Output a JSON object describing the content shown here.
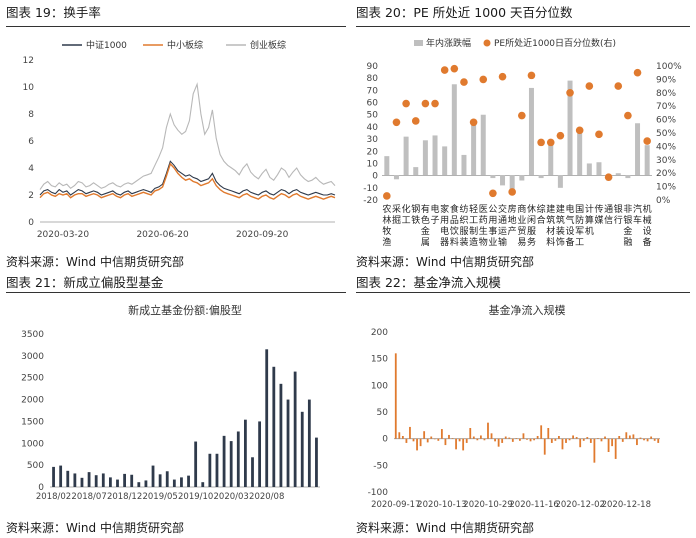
{
  "headers": {
    "fig19": "图表 19：换手率",
    "fig20": "图表 20：PE 所处近 1000 天百分位数",
    "fig21": "图表 21：新成立偏股型基金",
    "fig22": "图表 22：基金净流入规模"
  },
  "sources": {
    "s19": "资料来源：Wind  中信期货研究部",
    "s20": "资料来源：Wind  中信期货研究部",
    "s21": "资料来源：Wind  中信期货研究部",
    "s22": "资料来源：Wind  中信期货研究部"
  },
  "colors": {
    "dark": "#2f3a4b",
    "orange": "#e07a2e",
    "gray": "#b8b8b8",
    "bar_gray": "#bfbfbf"
  },
  "chart_data": [
    {
      "id": "turnover",
      "type": "line",
      "title": "",
      "legend": [
        "中证1000",
        "中小板综",
        "创业板综"
      ],
      "legend_position": "top",
      "ylim": [
        0,
        12
      ],
      "yticks": [
        0,
        2,
        4,
        6,
        8,
        10,
        12
      ],
      "xtick_labels": [
        "2020-03-20",
        "2020-06-20",
        "2020-09-20"
      ],
      "xtick_index": [
        6,
        32,
        58
      ],
      "series": [
        {
          "name": "中证1000",
          "values": [
            2.0,
            2.3,
            2.4,
            2.2,
            2.1,
            2.4,
            2.2,
            2.3,
            2.0,
            2.2,
            2.4,
            2.3,
            2.1,
            2.2,
            2.3,
            2.2,
            2.0,
            2.1,
            2.2,
            2.3,
            2.1,
            2.0,
            2.2,
            2.3,
            2.1,
            2.2,
            2.3,
            2.4,
            2.3,
            2.2,
            2.5,
            2.6,
            2.8,
            3.6,
            4.5,
            4.2,
            3.8,
            3.6,
            3.4,
            3.5,
            3.3,
            3.2,
            3.0,
            3.1,
            3.2,
            3.6,
            3.0,
            2.7,
            2.5,
            2.4,
            2.3,
            2.2,
            2.1,
            2.3,
            2.4,
            2.2,
            2.1,
            2.0,
            2.2,
            2.3,
            2.1,
            2.0,
            2.2,
            2.4,
            2.3,
            2.1,
            2.3,
            2.4,
            2.2,
            2.1,
            2.0,
            2.1,
            2.2,
            2.1,
            2.0,
            2.0,
            2.1,
            2.0
          ]
        },
        {
          "name": "中小板综",
          "values": [
            1.8,
            2.1,
            2.2,
            2.0,
            1.9,
            2.1,
            2.0,
            2.1,
            1.8,
            2.0,
            2.1,
            2.1,
            1.9,
            2.0,
            2.1,
            2.0,
            1.8,
            1.9,
            2.0,
            2.1,
            1.9,
            1.8,
            2.0,
            2.1,
            1.9,
            2.0,
            2.1,
            2.2,
            2.1,
            2.0,
            2.3,
            2.4,
            2.6,
            3.4,
            4.3,
            4.0,
            3.6,
            3.3,
            3.1,
            3.2,
            3.0,
            2.9,
            2.7,
            2.8,
            2.9,
            3.2,
            2.7,
            2.4,
            2.2,
            2.1,
            2.0,
            1.9,
            1.8,
            2.0,
            2.1,
            1.9,
            1.8,
            1.7,
            1.9,
            2.0,
            1.8,
            1.7,
            1.9,
            2.1,
            2.0,
            1.8,
            2.0,
            2.1,
            1.9,
            1.8,
            1.7,
            1.8,
            1.9,
            1.8,
            1.7,
            1.8,
            1.9,
            1.8
          ]
        },
        {
          "name": "创业板综",
          "values": [
            2.4,
            2.8,
            3.0,
            2.7,
            2.6,
            2.9,
            2.7,
            2.8,
            2.5,
            2.7,
            3.0,
            2.9,
            2.6,
            2.7,
            2.9,
            2.7,
            2.5,
            2.6,
            2.8,
            2.9,
            2.7,
            2.6,
            2.8,
            2.9,
            2.8,
            3.0,
            3.2,
            3.4,
            3.5,
            3.6,
            4.2,
            4.8,
            5.5,
            7.0,
            8.0,
            7.2,
            6.8,
            6.5,
            6.7,
            7.5,
            9.5,
            10.2,
            8.0,
            6.5,
            7.0,
            8.3,
            6.2,
            5.0,
            4.5,
            4.2,
            4.0,
            3.8,
            3.5,
            4.0,
            4.3,
            3.7,
            3.4,
            3.2,
            3.6,
            3.9,
            3.3,
            3.1,
            3.5,
            4.0,
            3.8,
            3.3,
            3.7,
            4.0,
            3.5,
            3.2,
            3.0,
            3.1,
            3.3,
            3.0,
            2.8,
            2.9,
            3.0,
            2.7
          ]
        }
      ]
    },
    {
      "id": "pe",
      "type": "bar",
      "title": "",
      "legend": [
        "年内涨跌幅",
        "PE所处近1000日百分位数(右)"
      ],
      "legend_position": "top",
      "ylim": [
        -20,
        90
      ],
      "yticks": [
        -20,
        -10,
        0,
        10,
        20,
        30,
        40,
        50,
        60,
        70,
        80,
        90
      ],
      "y2lim": [
        0,
        1
      ],
      "y2ticks": [
        "0%",
        "10%",
        "20%",
        "30%",
        "40%",
        "50%",
        "60%",
        "70%",
        "80%",
        "90%",
        "100%"
      ],
      "categories": [
        "农林牧渔",
        "采掘",
        "化工",
        "钢铁",
        "有色金属",
        "电子",
        "家用电器",
        "食品饮料",
        "纺织服装",
        "轻工制造",
        "医药生物",
        "公用事业",
        "交通运输",
        "房地产",
        "商业贸易",
        "休闲服务",
        "综合",
        "建筑材料",
        "建筑装饰",
        "电气设备",
        "国防军工",
        "计算机",
        "传媒",
        "通信",
        "银行",
        "非银金融",
        "汽车",
        "机械设备"
      ],
      "category_lines": [
        "农林牧渔",
        "采掘",
        "化工",
        "钢铁",
        "有色金属",
        "电子",
        "家用电器",
        "食品饮料",
        "纺织服装",
        "轻工制造",
        "医药生物",
        "公用事业",
        "交通运输",
        "房地产",
        "商业贸易",
        "休闲服务",
        "综合",
        "建筑材料",
        "建筑装饰",
        "电气设备",
        "国防军工",
        "计算机",
        "传媒",
        "通信",
        "银行",
        "非银金融",
        "汽车",
        "机械设备"
      ],
      "series": [
        {
          "name": "年内涨跌幅",
          "values": [
            16,
            -3,
            32,
            7,
            29,
            33,
            24,
            75,
            17,
            45,
            50,
            -2,
            -8,
            -13,
            -4,
            72,
            -2,
            27,
            -10,
            78,
            38,
            10,
            11,
            -4,
            2,
            -2,
            43,
            25
          ]
        },
        {
          "name": "PE所处近1000日百分位数(右)",
          "values": [
            0.03,
            0.58,
            0.72,
            0.59,
            0.72,
            0.72,
            0.97,
            0.98,
            0.88,
            0.58,
            0.9,
            0.05,
            0.92,
            0.06,
            0.63,
            0.93,
            0.43,
            0.43,
            0.48,
            0.8,
            0.52,
            0.85,
            0.49,
            0.17,
            0.85,
            0.63,
            0.95,
            0.44
          ]
        }
      ]
    },
    {
      "id": "newfunds",
      "type": "bar",
      "title": "新成立基金份额:偏股型",
      "ylim": [
        0,
        3500
      ],
      "yticks": [
        0,
        500,
        1000,
        1500,
        2000,
        2500,
        3000,
        3500
      ],
      "xtick_labels": [
        "2018/02",
        "2018/07",
        "2018/12",
        "2019/05",
        "2019/10",
        "2020/03",
        "2020/08"
      ],
      "xtick_index": [
        0,
        5,
        10,
        15,
        20,
        25,
        30
      ],
      "values": [
        460,
        490,
        370,
        310,
        210,
        340,
        270,
        310,
        220,
        170,
        300,
        280,
        110,
        150,
        490,
        290,
        360,
        170,
        220,
        260,
        1040,
        110,
        760,
        760,
        1170,
        1050,
        1270,
        1540,
        680,
        1500,
        3150,
        2750,
        2360,
        2000,
        2640,
        1720,
        2000,
        1130
      ]
    },
    {
      "id": "netflow",
      "type": "bar",
      "title": "基金净流入规模",
      "ylim": [
        -100,
        200
      ],
      "yticks": [
        -100,
        -50,
        0,
        50,
        100,
        150,
        200
      ],
      "xtick_labels": [
        "2020-09-17",
        "2020-10-13",
        "2020-10-29",
        "2020-11-16",
        "2020-12-02",
        "2020-12-18"
      ],
      "xtick_index": [
        0,
        13,
        26,
        39,
        52,
        65
      ],
      "values": [
        160,
        12,
        5,
        -8,
        22,
        -5,
        -22,
        -14,
        14,
        -7,
        4,
        0,
        -4,
        18,
        -12,
        7,
        1,
        -20,
        -5,
        -22,
        -8,
        20,
        4,
        -3,
        6,
        -3,
        30,
        10,
        -5,
        -15,
        -8,
        4,
        2,
        -6,
        1,
        -4,
        10,
        -2,
        -5,
        -3,
        5,
        25,
        -30,
        20,
        -8,
        -4,
        5,
        -20,
        -8,
        -3,
        6,
        3,
        -16,
        -4,
        3,
        -8,
        -45,
        1,
        -5,
        4,
        -25,
        -14,
        -38,
        5,
        -6,
        12,
        6,
        8,
        -12,
        2,
        -3,
        -5,
        4,
        -4,
        -8
      ]
    }
  ]
}
